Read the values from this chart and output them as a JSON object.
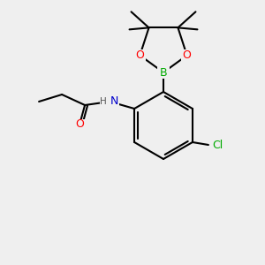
{
  "bg_color": "#efefef",
  "bond_color": "#000000",
  "bond_width": 1.5,
  "atom_colors": {
    "O": "#ff0000",
    "N": "#0000cc",
    "B": "#00aa00",
    "Cl": "#00aa00",
    "C": "#000000",
    "H": "#555555"
  },
  "font_size": 9,
  "font_size_small": 7.5
}
